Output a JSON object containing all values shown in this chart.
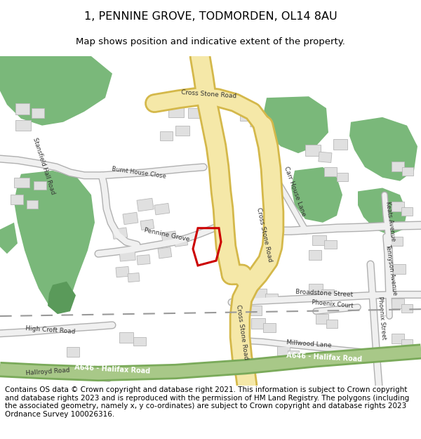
{
  "title": "1, PENNINE GROVE, TODMORDEN, OL14 8AU",
  "subtitle": "Map shows position and indicative extent of the property.",
  "footer": "Contains OS data © Crown copyright and database right 2021. This information is subject to Crown copyright and database rights 2023 and is reproduced with the permission of HM Land Registry. The polygons (including the associated geometry, namely x, y co-ordinates) are subject to Crown copyright and database rights 2023 Ordnance Survey 100026316.",
  "bg_color": "#ffffff",
  "road_yellow_fill": "#f5e8a8",
  "road_yellow_border": "#d4b84a",
  "road_grey": "#d0d0d0",
  "road_grey_border": "#b0b0b0",
  "green_main": "#7ab87a",
  "green_dark": "#5a9a5a",
  "building_fill": "#e0e0e0",
  "building_stroke": "#b8b8b8",
  "road_green_fill": "#a8c888",
  "road_green_border": "#7aaa5a",
  "red_polygon": "#cc0000",
  "title_fontsize": 11.5,
  "subtitle_fontsize": 9.5,
  "footer_fontsize": 7.5,
  "label_color": "#333333",
  "label_size": 6.5
}
